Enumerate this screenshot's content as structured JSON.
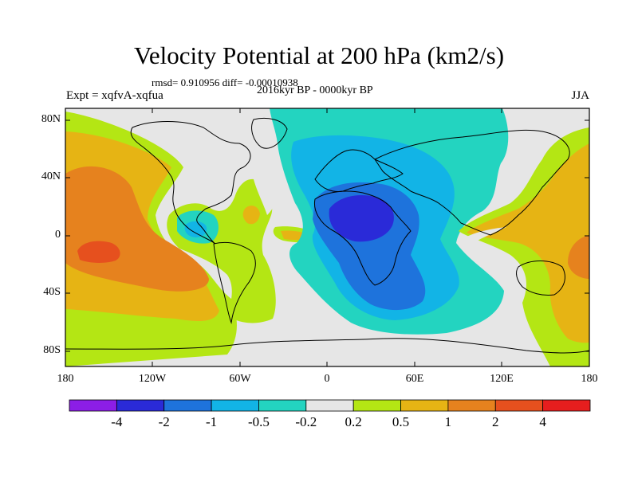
{
  "title": "Velocity Potential at 200 hPa (km2/s)",
  "stats_line": "rmsd= 0.910956 diff= -0.00010938",
  "period_line": "2016kyr BP - 0000kyr BP",
  "left_string": "Expt = xqfvA-xqfua",
  "right_string": "JJA",
  "map": {
    "lat_labels": [
      "80N",
      "40N",
      "0",
      "40S",
      "80S"
    ],
    "lon_labels": [
      "180",
      "120W",
      "60W",
      "0",
      "60E",
      "120E",
      "180"
    ]
  },
  "colorbar": {
    "labels": [
      "-4",
      "-2",
      "-1",
      "-0.5",
      "-0.2",
      "0.2",
      "0.5",
      "1",
      "2",
      "4"
    ],
    "colors": [
      "#8c1ee6",
      "#2a2ad8",
      "#1e73dc",
      "#12b4e6",
      "#23d4c0",
      "#e6e6e6",
      "#b4e614",
      "#e6b414",
      "#e6821e",
      "#e6501e",
      "#e61e1e"
    ]
  }
}
